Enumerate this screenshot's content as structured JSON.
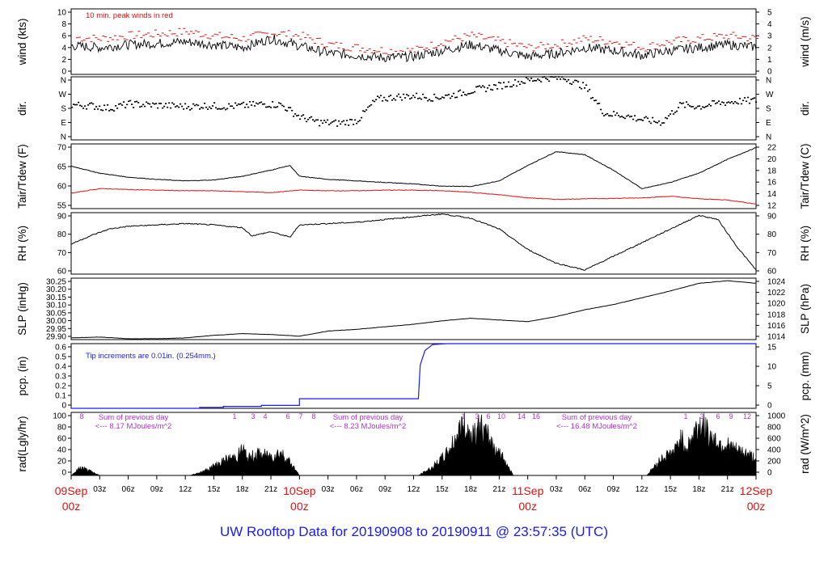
{
  "footer": "UW Rooftop Data for 20190908  to  20190911 @ 23:57:35  (UTC)",
  "colors": {
    "main": "#000000",
    "red": "#e01010",
    "blue": "#1a1aff",
    "purple": "#b030d0",
    "date": "#e01010"
  },
  "chart_data": [
    {
      "name": "wind",
      "type": "line",
      "ylabel_left": "wind (kts)",
      "ylabel_right": "wind (m/s)",
      "annotation": "10 min. peak winds in red",
      "yticks_left": [
        "0",
        "2",
        "4",
        "6",
        "8",
        "10"
      ],
      "ylim": [
        0,
        11
      ],
      "yticks_right": [
        "0",
        "1",
        "2",
        "3",
        "4",
        "5"
      ],
      "series": [
        {
          "name": "peak",
          "color": "red",
          "style": "dash",
          "x": [
            0,
            3,
            6,
            9,
            12,
            15,
            18,
            21,
            24,
            27,
            30,
            33,
            36,
            39,
            42,
            45,
            48,
            51,
            54,
            57,
            60,
            63,
            66,
            69,
            72
          ],
          "values": [
            6.2,
            6,
            6.5,
            6.8,
            7.2,
            6.5,
            6,
            7,
            6.5,
            5,
            4.5,
            4,
            4,
            5.5,
            6.5,
            5.5,
            4.5,
            5,
            6,
            5.5,
            4.5,
            5.5,
            6,
            6.5,
            6
          ]
        },
        {
          "name": "mean",
          "color": "main",
          "style": "line",
          "x": [
            0,
            3,
            6,
            9,
            12,
            15,
            18,
            21,
            24,
            27,
            30,
            33,
            36,
            39,
            42,
            45,
            48,
            51,
            54,
            57,
            60,
            63,
            66,
            69,
            72
          ],
          "values": [
            4.8,
            4.5,
            5,
            5.2,
            5.5,
            5,
            4.5,
            6,
            4.8,
            3.6,
            3.2,
            2.8,
            3,
            4,
            5,
            4,
            3,
            3.5,
            4.5,
            4,
            3.2,
            4,
            4.5,
            5,
            4.6
          ]
        }
      ]
    },
    {
      "name": "dir",
      "type": "scatter",
      "ylabel_left": "dir.",
      "ylabel_right": "dir.",
      "yticks_left": [
        "N",
        "E",
        "S",
        "W",
        "N"
      ],
      "ylim": [
        0,
        360
      ],
      "series": [
        {
          "name": "direction",
          "color": "main",
          "x": [
            0,
            2,
            4,
            6,
            8,
            10,
            12,
            14,
            16,
            18,
            20,
            22,
            24,
            26,
            28,
            30,
            32,
            34,
            36,
            38,
            40,
            42,
            44,
            46,
            48,
            50,
            52,
            54,
            56,
            58,
            60,
            62,
            64,
            66,
            68,
            70,
            72
          ],
          "values": [
            200,
            195,
            180,
            205,
            200,
            195,
            190,
            195,
            190,
            195,
            205,
            200,
            130,
            100,
            95,
            110,
            230,
            245,
            250,
            240,
            255,
            280,
            300,
            320,
            340,
            355,
            350,
            300,
            150,
            140,
            115,
            100,
            200,
            190,
            210,
            220,
            225
          ]
        }
      ]
    },
    {
      "name": "temp",
      "type": "line",
      "ylabel_left": "Tair/Tdew (F)",
      "ylabel_right": "Tair/Tdew (C)",
      "yticks_left": [
        "55",
        "60",
        "65",
        "70"
      ],
      "ylim": [
        52,
        73
      ],
      "yticks_right": [
        "12",
        "14",
        "16",
        "18",
        "20",
        "22"
      ],
      "series": [
        {
          "name": "Tair",
          "color": "main",
          "x": [
            0,
            3,
            6,
            9,
            12,
            15,
            18,
            21,
            23,
            24,
            27,
            30,
            33,
            36,
            39,
            42,
            45,
            48,
            51,
            54,
            57,
            60,
            63,
            66,
            69,
            72
          ],
          "values": [
            65.8,
            63.5,
            62.2,
            61.5,
            61,
            61.3,
            62.5,
            64.5,
            66,
            62.5,
            61.5,
            61,
            60.5,
            60,
            59.3,
            59.2,
            61,
            66,
            70.5,
            69.5,
            64.5,
            58.5,
            60.5,
            63.5,
            68,
            71.8
          ]
        },
        {
          "name": "Tdew",
          "color": "red",
          "x": [
            0,
            3,
            6,
            9,
            12,
            15,
            18,
            21,
            24,
            27,
            30,
            33,
            36,
            39,
            42,
            45,
            48,
            51,
            54,
            57,
            60,
            63,
            66,
            69,
            72
          ],
          "values": [
            57,
            58.5,
            58.2,
            58,
            57.8,
            57.8,
            57.5,
            57.2,
            58,
            57.8,
            57.8,
            58,
            58,
            57.8,
            57.3,
            56.5,
            55.5,
            55,
            55.2,
            55.3,
            55.5,
            56,
            55.2,
            54.8,
            53.5
          ]
        }
      ]
    },
    {
      "name": "rh",
      "type": "line",
      "ylabel_left": "RH (%)",
      "ylabel_right": "RH (%)",
      "yticks_left": [
        "60",
        "70",
        "80",
        "90"
      ],
      "ylim": [
        52,
        97
      ],
      "yticks_right": [
        "60",
        "70",
        "80",
        "90"
      ],
      "series": [
        {
          "name": "RH",
          "color": "main",
          "x": [
            0,
            2,
            4,
            6,
            9,
            12,
            15,
            18,
            19,
            21,
            23,
            24,
            27,
            30,
            33,
            36,
            39,
            42,
            45,
            48,
            51,
            54,
            57,
            60,
            63,
            66,
            68,
            70,
            72
          ],
          "values": [
            74,
            80,
            85,
            87,
            88,
            89,
            88,
            86,
            80,
            83,
            79,
            88,
            89,
            90,
            92,
            94,
            96,
            93,
            85,
            70,
            60,
            55,
            65,
            75,
            85,
            95,
            92,
            72,
            55
          ]
        }
      ]
    },
    {
      "name": "slp",
      "type": "line",
      "ylabel_left": "SLP (inHg)",
      "ylabel_right": "SLP (hPa)",
      "yticks_left": [
        "29.90",
        "29.95",
        "30.00",
        "30.05",
        "30.10",
        "30.15",
        "30.20",
        "30.25"
      ],
      "ylim": [
        29.895,
        30.255
      ],
      "yticks_right": [
        "1014",
        "1016",
        "1018",
        "1020",
        "1022",
        "1024"
      ],
      "series": [
        {
          "name": "SLP",
          "color": "main",
          "x": [
            0,
            3,
            6,
            9,
            12,
            15,
            18,
            21,
            24,
            27,
            30,
            33,
            36,
            39,
            42,
            45,
            48,
            51,
            54,
            57,
            60,
            63,
            66,
            69,
            72
          ],
          "values": [
            29.905,
            29.91,
            29.9,
            29.9,
            29.905,
            29.92,
            29.93,
            29.925,
            29.915,
            29.945,
            29.955,
            29.97,
            29.985,
            30.005,
            30.02,
            30.01,
            30.0,
            30.03,
            30.07,
            30.1,
            30.14,
            30.18,
            30.225,
            30.24,
            30.225
          ]
        }
      ]
    },
    {
      "name": "pcp",
      "type": "line",
      "ylabel_left": "pcp. (in)",
      "ylabel_right": "pcp. (mm)",
      "annotation": "Tip increments are 0.01in. (0.254mm.)",
      "yticks_left": [
        "0",
        "0.1",
        "0.2",
        "0.3",
        "0.4",
        "0.5",
        "0.6"
      ],
      "ylim": [
        0,
        0.67
      ],
      "yticks_right": [
        "0",
        "5",
        "10",
        "15"
      ],
      "series": [
        {
          "name": "accum",
          "color": "blue",
          "x": [
            0,
            13.5,
            13.5,
            16,
            16,
            20,
            20,
            24,
            24,
            36.5,
            36.7,
            37.2,
            38,
            39.5,
            72
          ],
          "values": [
            0,
            0,
            0.01,
            0.01,
            0.02,
            0.02,
            0.03,
            0.03,
            0.1,
            0.1,
            0.45,
            0.6,
            0.66,
            0.67,
            0.67
          ]
        }
      ]
    },
    {
      "name": "rad",
      "type": "area",
      "ylabel_left": "rad(Lgly/hr)",
      "ylabel_right": "rad (W/m^2)",
      "yticks_left": [
        "0",
        "20",
        "40",
        "60",
        "80",
        "100"
      ],
      "ylim": [
        0,
        100
      ],
      "yticks_right": [
        "0",
        "200",
        "400",
        "600",
        "800",
        "1000"
      ],
      "day_notes": [
        {
          "line1": "Sum of previous day",
          "line2": "<--- 8.17 MJoules/m^2"
        },
        {
          "line1": "Sum of previous day",
          "line2": "<--- 8.23 MJoules/m^2"
        },
        {
          "line1": "Sum of previous day",
          "line2": "<--- 16.48 MJoules/m^2"
        }
      ],
      "hour_marks": [
        "8",
        "1",
        "3",
        "4",
        "6",
        "7",
        "8",
        "1",
        "3",
        "6",
        "10",
        "14",
        "16",
        "1",
        "3",
        "6",
        "9",
        "12"
      ],
      "series": [
        {
          "name": "radiation",
          "color": "main",
          "x": [
            0,
            1,
            2,
            3,
            12.5,
            14,
            15.5,
            16.5,
            17.5,
            18,
            18.6,
            19.5,
            20,
            21,
            22,
            23,
            24,
            36.5,
            38,
            39.5,
            40.5,
            41.2,
            42,
            43,
            44,
            45.5,
            46.5,
            60.5,
            62,
            63.5,
            64,
            64.8,
            65.5,
            66.2,
            67,
            68,
            69,
            70,
            71,
            72
          ],
          "values": [
            0,
            15,
            8,
            0,
            0,
            8,
            22,
            30,
            35,
            50,
            30,
            40,
            38,
            35,
            42,
            25,
            0,
            0,
            15,
            40,
            70,
            95,
            75,
            90,
            65,
            30,
            0,
            0,
            30,
            45,
            70,
            50,
            80,
            95,
            75,
            60,
            55,
            45,
            40,
            30
          ]
        }
      ]
    }
  ],
  "xaxis": {
    "hour_labels": [
      "03z",
      "06z",
      "09z",
      "12z",
      "15z",
      "18z",
      "21z",
      "03z",
      "06z",
      "09z",
      "12z",
      "15z",
      "18z",
      "21z",
      "03z",
      "06z",
      "09z",
      "12z",
      "15z",
      "18z",
      "21z"
    ],
    "date_labels": [
      {
        "line1": "09Sep",
        "line2": "00z"
      },
      {
        "line1": "10Sep",
        "line2": "00z"
      },
      {
        "line1": "11Sep",
        "line2": "00z"
      },
      {
        "line1": "12Sep",
        "line2": "00z"
      }
    ],
    "xlim": [
      0,
      72
    ]
  }
}
